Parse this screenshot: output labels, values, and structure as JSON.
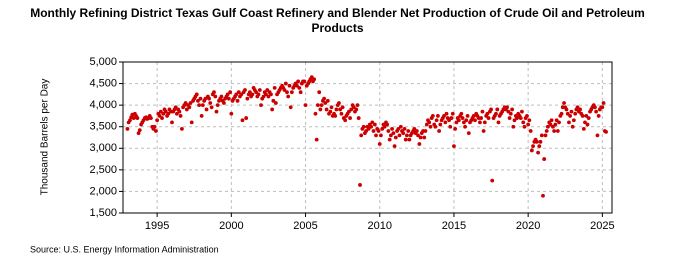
{
  "chart_data": {
    "type": "scatter",
    "title": "Monthly Refining District Texas Gulf Coast Refinery and Blender Net Production of Crude Oil and Petroleum Products",
    "y_label": "Thousand Barrels per Day",
    "source": "Source: U.S. Energy Information Administration",
    "xlim": [
      1992.7,
      2025.65
    ],
    "ylim": [
      1500,
      5000
    ],
    "xticks": [
      1995,
      2000,
      2005,
      2010,
      2015,
      2020,
      2025
    ],
    "yticks": [
      {
        "value": 1500,
        "label": "1,500"
      },
      {
        "value": 2000,
        "label": "2,000"
      },
      {
        "value": 2500,
        "label": "2,500"
      },
      {
        "value": 3000,
        "label": "3,000"
      },
      {
        "value": 3500,
        "label": "3,500"
      },
      {
        "value": 4000,
        "label": "4,000"
      },
      {
        "value": 4500,
        "label": "4,500"
      },
      {
        "value": 5000,
        "label": "5,000"
      }
    ],
    "grid": true,
    "color": "#cc0000",
    "x": [
      1993.0,
      1993.08,
      1993.17,
      1993.25,
      1993.33,
      1993.42,
      1993.5,
      1993.58,
      1993.67,
      1993.75,
      1993.83,
      1993.92,
      1994.0,
      1994.08,
      1994.17,
      1994.25,
      1994.33,
      1994.42,
      1994.5,
      1994.58,
      1994.67,
      1994.75,
      1994.83,
      1994.92,
      1995.0,
      1995.08,
      1995.17,
      1995.25,
      1995.33,
      1995.42,
      1995.5,
      1995.58,
      1995.67,
      1995.75,
      1995.83,
      1995.92,
      1996.0,
      1996.08,
      1996.17,
      1996.25,
      1996.33,
      1996.42,
      1996.5,
      1996.58,
      1996.67,
      1996.75,
      1996.83,
      1996.92,
      1997.0,
      1997.08,
      1997.17,
      1997.25,
      1997.33,
      1997.42,
      1997.5,
      1997.58,
      1997.67,
      1997.75,
      1997.83,
      1997.92,
      1998.0,
      1998.08,
      1998.17,
      1998.25,
      1998.33,
      1998.42,
      1998.5,
      1998.58,
      1998.67,
      1998.75,
      1998.83,
      1998.92,
      1999.0,
      1999.08,
      1999.17,
      1999.25,
      1999.33,
      1999.42,
      1999.5,
      1999.58,
      1999.67,
      1999.75,
      1999.83,
      1999.92,
      2000.0,
      2000.08,
      2000.17,
      2000.25,
      2000.33,
      2000.42,
      2000.5,
      2000.58,
      2000.67,
      2000.75,
      2000.83,
      2000.92,
      2001.0,
      2001.08,
      2001.17,
      2001.25,
      2001.33,
      2001.42,
      2001.5,
      2001.58,
      2001.67,
      2001.75,
      2001.83,
      2001.92,
      2002.0,
      2002.08,
      2002.17,
      2002.25,
      2002.33,
      2002.42,
      2002.5,
      2002.58,
      2002.67,
      2002.75,
      2002.83,
      2002.92,
      2003.0,
      2003.08,
      2003.17,
      2003.25,
      2003.33,
      2003.42,
      2003.5,
      2003.58,
      2003.67,
      2003.75,
      2003.83,
      2003.92,
      2004.0,
      2004.08,
      2004.17,
      2004.25,
      2004.33,
      2004.42,
      2004.5,
      2004.58,
      2004.67,
      2004.75,
      2004.83,
      2004.92,
      2005.0,
      2005.08,
      2005.17,
      2005.25,
      2005.33,
      2005.42,
      2005.5,
      2005.58,
      2005.67,
      2005.75,
      2005.83,
      2005.92,
      2006.0,
      2006.08,
      2006.17,
      2006.25,
      2006.33,
      2006.42,
      2006.5,
      2006.58,
      2006.67,
      2006.75,
      2006.83,
      2006.92,
      2007.0,
      2007.08,
      2007.17,
      2007.25,
      2007.33,
      2007.42,
      2007.5,
      2007.58,
      2007.67,
      2007.75,
      2007.83,
      2007.92,
      2008.0,
      2008.08,
      2008.17,
      2008.25,
      2008.33,
      2008.42,
      2008.5,
      2008.58,
      2008.67,
      2008.75,
      2008.83,
      2008.92,
      2009.0,
      2009.08,
      2009.17,
      2009.25,
      2009.33,
      2009.42,
      2009.5,
      2009.58,
      2009.67,
      2009.75,
      2009.83,
      2009.92,
      2010.0,
      2010.08,
      2010.17,
      2010.25,
      2010.33,
      2010.42,
      2010.5,
      2010.58,
      2010.67,
      2010.75,
      2010.83,
      2010.92,
      2011.0,
      2011.08,
      2011.17,
      2011.25,
      2011.33,
      2011.42,
      2011.5,
      2011.58,
      2011.67,
      2011.75,
      2011.83,
      2011.92,
      2012.0,
      2012.08,
      2012.17,
      2012.25,
      2012.33,
      2012.42,
      2012.5,
      2012.58,
      2012.67,
      2012.75,
      2012.83,
      2012.92,
      2013.0,
      2013.08,
      2013.17,
      2013.25,
      2013.33,
      2013.42,
      2013.5,
      2013.58,
      2013.67,
      2013.75,
      2013.83,
      2013.92,
      2014.0,
      2014.08,
      2014.17,
      2014.25,
      2014.33,
      2014.42,
      2014.5,
      2014.58,
      2014.67,
      2014.75,
      2014.83,
      2014.92,
      2015.0,
      2015.08,
      2015.17,
      2015.25,
      2015.33,
      2015.42,
      2015.5,
      2015.58,
      2015.67,
      2015.75,
      2015.83,
      2015.92,
      2016.0,
      2016.08,
      2016.17,
      2016.25,
      2016.33,
      2016.42,
      2016.5,
      2016.58,
      2016.67,
      2016.75,
      2016.83,
      2016.92,
      2017.0,
      2017.08,
      2017.17,
      2017.25,
      2017.33,
      2017.42,
      2017.5,
      2017.58,
      2017.67,
      2017.75,
      2017.83,
      2017.92,
      2018.0,
      2018.08,
      2018.17,
      2018.25,
      2018.33,
      2018.42,
      2018.5,
      2018.58,
      2018.67,
      2018.75,
      2018.83,
      2018.92,
      2019.0,
      2019.08,
      2019.17,
      2019.25,
      2019.33,
      2019.42,
      2019.5,
      2019.58,
      2019.67,
      2019.75,
      2019.83,
      2019.92,
      2020.0,
      2020.08,
      2020.17,
      2020.25,
      2020.33,
      2020.42,
      2020.5,
      2020.58,
      2020.67,
      2020.75,
      2020.83,
      2020.92,
      2021.0,
      2021.08,
      2021.17,
      2021.25,
      2021.33,
      2021.42,
      2021.5,
      2021.58,
      2021.67,
      2021.75,
      2021.83,
      2021.92,
      2022.0,
      2022.08,
      2022.17,
      2022.25,
      2022.33,
      2022.42,
      2022.5,
      2022.58,
      2022.67,
      2022.75,
      2022.83,
      2022.92,
      2023.0,
      2023.08,
      2023.17,
      2023.25,
      2023.33,
      2023.42,
      2023.5,
      2023.58,
      2023.67,
      2023.75,
      2023.83,
      2023.92,
      2024.0,
      2024.08,
      2024.17,
      2024.25,
      2024.33,
      2024.42,
      2024.5,
      2024.58,
      2024.67,
      2024.75,
      2024.83,
      2024.92,
      2025.0,
      2025.08,
      2025.17,
      2025.25
    ],
    "values": [
      3450,
      3600,
      3650,
      3720,
      3780,
      3700,
      3800,
      3750,
      3700,
      3350,
      3420,
      3550,
      3600,
      3650,
      3700,
      3720,
      3680,
      3700,
      3750,
      3700,
      3500,
      3450,
      3500,
      3400,
      3650,
      3800,
      3750,
      3850,
      3700,
      3800,
      3900,
      3850,
      3750,
      3800,
      3900,
      3850,
      3600,
      3850,
      3900,
      3950,
      3800,
      3900,
      3850,
      3750,
      3450,
      3950,
      4000,
      4050,
      3900,
      4000,
      3950,
      4050,
      3600,
      4100,
      4150,
      4200,
      4250,
      4100,
      4000,
      4150,
      3750,
      4000,
      4100,
      4150,
      3900,
      4200,
      4150,
      4050,
      3950,
      4250,
      4300,
      4200,
      3850,
      4000,
      4100,
      4150,
      4200,
      4100,
      4050,
      4150,
      4200,
      4250,
      4150,
      4300,
      3800,
      4100,
      4150,
      4200,
      4250,
      4100,
      4300,
      4200,
      4250,
      3650,
      4300,
      4350,
      3700,
      4150,
      4250,
      4300,
      4200,
      4250,
      4400,
      4350,
      4300,
      4200,
      4250,
      4350,
      4000,
      4150,
      4200,
      4300,
      4250,
      4350,
      4200,
      4300,
      4250,
      3900,
      4100,
      4400,
      4050,
      4250,
      4300,
      4350,
      4400,
      4450,
      4400,
      4350,
      4500,
      4300,
      4200,
      4450,
      3950,
      4300,
      4400,
      4450,
      4500,
      4450,
      4550,
      4400,
      4300,
      4500,
      4550,
      4550,
      4000,
      4450,
      4500,
      4550,
      4600,
      4650,
      4550,
      4600,
      3800,
      3200,
      4000,
      4300,
      3900,
      4000,
      4100,
      4150,
      4050,
      3900,
      4100,
      3800,
      3850,
      3950,
      3750,
      3800,
      3750,
      3900,
      4000,
      4050,
      3900,
      3800,
      3950,
      3700,
      3650,
      3750,
      3800,
      3850,
      3700,
      3900,
      4000,
      3950,
      3850,
      3900,
      4000,
      3700,
      2150,
      3300,
      3450,
      3500,
      3350,
      3400,
      3500,
      3450,
      3550,
      3500,
      3600,
      3400,
      3550,
      3300,
      3450,
      3400,
      3100,
      3300,
      3450,
      3550,
      3500,
      3600,
      3550,
      3400,
      3200,
      3300,
      3450,
      3350,
      3050,
      3250,
      3400,
      3450,
      3300,
      3500,
      3400,
      3350,
      3450,
      3200,
      3300,
      3400,
      3200,
      3300,
      3350,
      3400,
      3450,
      3350,
      3400,
      3300,
      3100,
      3250,
      3350,
      3400,
      3250,
      3400,
      3550,
      3650,
      3600,
      3500,
      3700,
      3750,
      3550,
      3500,
      3650,
      3750,
      3400,
      3550,
      3650,
      3700,
      3750,
      3600,
      3800,
      3700,
      3650,
      3500,
      3700,
      3800,
      3050,
      3450,
      3600,
      3700,
      3650,
      3750,
      3800,
      3700,
      3600,
      3500,
      3650,
      3750,
      3350,
      3600,
      3650,
      3700,
      3750,
      3650,
      3800,
      3750,
      3700,
      3600,
      3700,
      3850,
      3400,
      3600,
      3750,
      3800,
      3700,
      3850,
      3900,
      2250,
      3700,
      3750,
      3800,
      3900,
      3600,
      3750,
      3800,
      3850,
      3900,
      3950,
      3900,
      3950,
      3850,
      3700,
      3800,
      3900,
      3500,
      3650,
      3750,
      3700,
      3800,
      3750,
      3700,
      3850,
      3600,
      3500,
      3700,
      3750,
      3550,
      3650,
      3400,
      2950,
      3050,
      3150,
      3200,
      3150,
      2900,
      3050,
      3150,
      3300,
      1900,
      2750,
      3300,
      3400,
      3500,
      3600,
      3550,
      3650,
      3500,
      3400,
      3550,
      3650,
      3400,
      3600,
      3750,
      3800,
      3950,
      4050,
      3950,
      3900,
      3800,
      3600,
      3750,
      3850,
      3500,
      3650,
      3800,
      3900,
      3950,
      3850,
      3900,
      3800,
      3750,
      3450,
      3600,
      3750,
      3550,
      3700,
      3850,
      3900,
      3950,
      4000,
      3950,
      3850,
      3300,
      3750,
      3900,
      3950,
      3950,
      4050,
      3400,
      3380
    ]
  }
}
